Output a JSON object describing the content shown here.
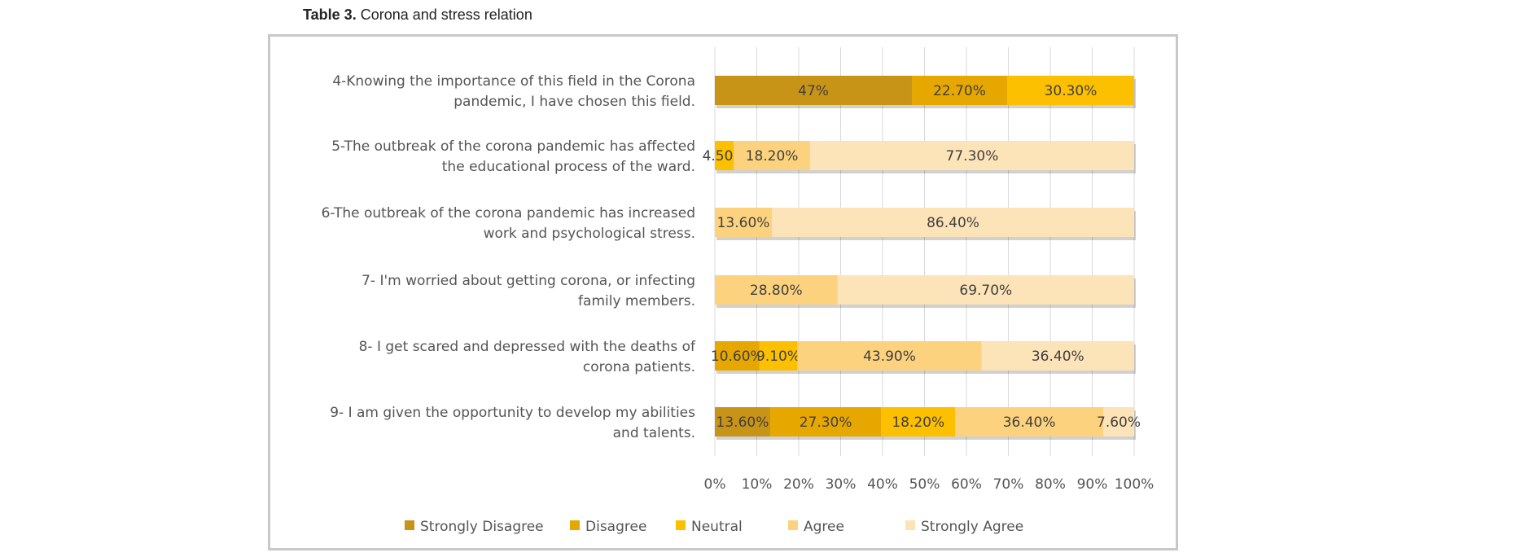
{
  "title": {
    "label": "Table 3.",
    "text": "Corona and stress relation"
  },
  "chart_data": {
    "type": "bar",
    "orientation": "horizontal",
    "stacked": "percent",
    "categories": [
      [
        "4-Knowing the importance of this field in the Corona",
        "pandemic, I have chosen this field."
      ],
      [
        "5-The outbreak of the corona pandemic has affected",
        "the educational process of the ward."
      ],
      [
        "6-The outbreak of the corona pandemic has increased",
        "work and psychological stress."
      ],
      [
        "7- I'm worried about getting corona, or infecting",
        "family members."
      ],
      [
        "8- I get scared and depressed with the deaths of",
        "corona patients."
      ],
      [
        "9- I am given the opportunity to develop my abilities",
        "and talents."
      ]
    ],
    "series": [
      {
        "name": "Strongly Disagree",
        "color": "#c89418",
        "values": [
          47,
          null,
          null,
          null,
          null,
          13.6
        ],
        "labels": [
          "47%",
          null,
          null,
          null,
          null,
          "13.60%"
        ]
      },
      {
        "name": "Disagree",
        "color": "#e5a700",
        "values": [
          22.7,
          null,
          null,
          null,
          10.6,
          27.3
        ],
        "labels": [
          "22.70%",
          null,
          null,
          null,
          "10.60%",
          "27.30%"
        ]
      },
      {
        "name": "Neutral",
        "color": "#fcc000",
        "values": [
          30.3,
          4.5,
          null,
          null,
          9.1,
          18.2
        ],
        "labels": [
          "30.30%",
          "4.50%",
          null,
          null,
          "9.10%",
          "18.20%"
        ]
      },
      {
        "name": "Agree",
        "color": "#fdd27e",
        "values": [
          null,
          18.2,
          13.6,
          28.8,
          43.9,
          36.4
        ],
        "labels": [
          null,
          "18.20%",
          "13.60%",
          "28.80%",
          "43.90%",
          "36.40%"
        ]
      },
      {
        "name": "Strongly Agree",
        "color": "#fde3b8",
        "values": [
          null,
          77.3,
          86.4,
          69.7,
          36.4,
          7.6
        ],
        "labels": [
          null,
          "77.30%",
          "86.40%",
          "69.70%",
          "36.40%",
          "7.60%"
        ]
      }
    ],
    "xticks": [
      "0%",
      "10%",
      "20%",
      "30%",
      "40%",
      "50%",
      "60%",
      "70%",
      "80%",
      "90%",
      "100%"
    ],
    "xlim": [
      0,
      100
    ],
    "grid": true,
    "legend": "bottom"
  }
}
